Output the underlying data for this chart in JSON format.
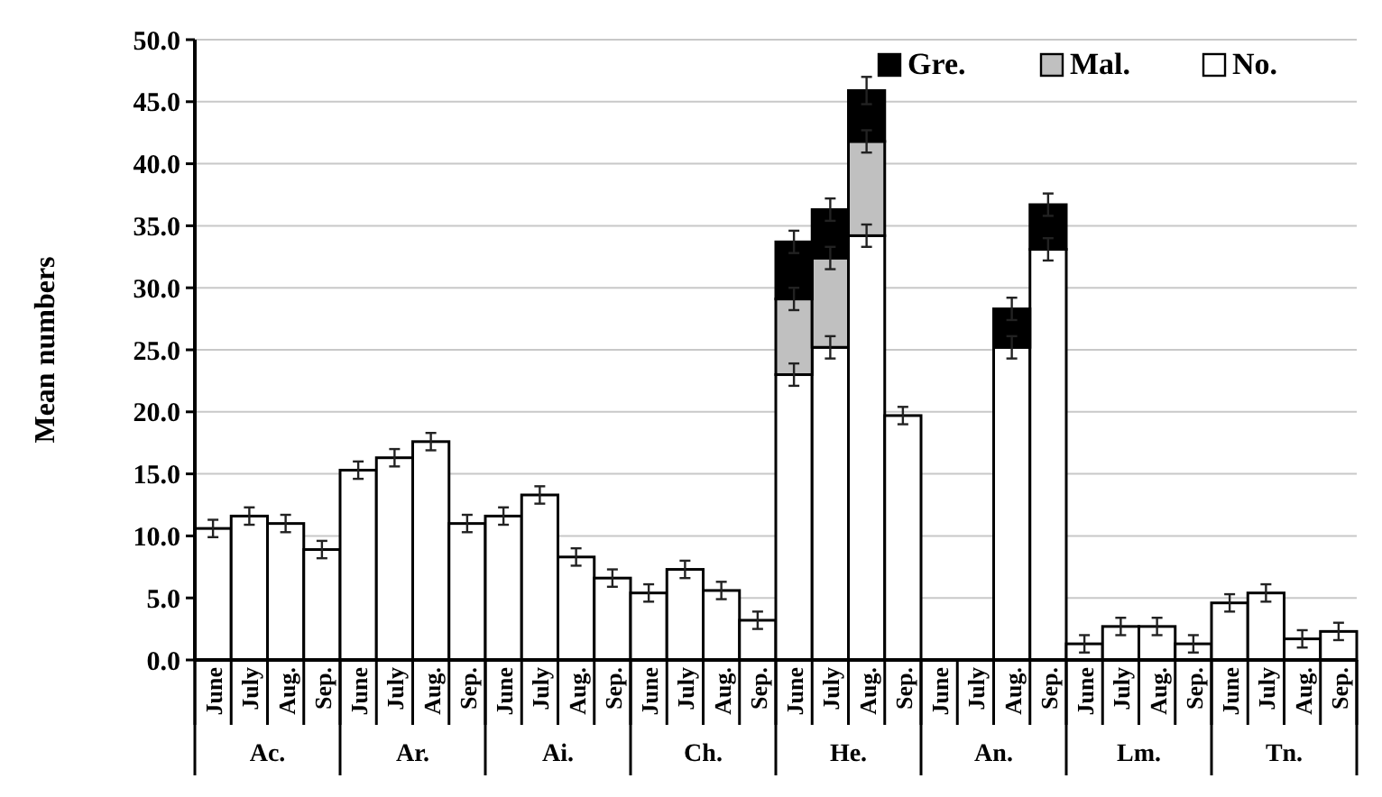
{
  "chart_data": {
    "type": "bar",
    "stacked": true,
    "ylabel": "Mean numbers",
    "categories": [
      "June",
      "July",
      "Aug.",
      "Sep.",
      "June",
      "July",
      "Aug.",
      "Sep.",
      "June",
      "July",
      "Aug.",
      "Sep.",
      "June",
      "July",
      "Aug.",
      "Sep.",
      "June",
      "July",
      "Aug.",
      "Sep.",
      "June",
      "July",
      "Aug.",
      "Sep.",
      "June",
      "July",
      "Aug.",
      "Sep.",
      "June",
      "July",
      "Aug.",
      "Sep."
    ],
    "series": [
      {
        "name": "No.",
        "color": "#ffffff",
        "values": [
          10.6,
          11.6,
          11.0,
          8.9,
          15.3,
          16.3,
          17.6,
          11.0,
          11.6,
          13.3,
          8.3,
          6.6,
          5.4,
          7.3,
          5.6,
          3.2,
          23.0,
          25.2,
          34.2,
          19.7,
          0,
          0,
          25.2,
          33.1,
          1.3,
          2.7,
          2.7,
          1.3,
          4.6,
          5.4,
          1.7,
          2.3
        ],
        "errors": [
          0.7,
          0.7,
          0.7,
          0.7,
          0.7,
          0.7,
          0.7,
          0.7,
          0.7,
          0.7,
          0.7,
          0.7,
          0.7,
          0.7,
          0.7,
          0.7,
          0.9,
          0.9,
          0.9,
          0.7,
          null,
          null,
          0.9,
          0.9,
          0.7,
          0.7,
          0.7,
          0.7,
          0.7,
          0.7,
          0.7,
          0.7
        ]
      },
      {
        "name": "Mal.",
        "color": "#c0c0c0",
        "values": [
          0,
          0,
          0,
          0,
          0,
          0,
          0,
          0,
          0,
          0,
          0,
          0,
          0,
          0,
          0,
          0,
          6.1,
          7.2,
          7.6,
          0,
          0,
          0,
          0,
          0,
          0,
          0,
          0,
          0,
          0,
          0,
          0,
          0
        ],
        "errors": [
          null,
          null,
          null,
          null,
          null,
          null,
          null,
          null,
          null,
          null,
          null,
          null,
          null,
          null,
          null,
          null,
          0.9,
          0.9,
          0.9,
          null,
          null,
          null,
          null,
          null,
          null,
          null,
          null,
          null,
          null,
          null,
          null,
          null
        ]
      },
      {
        "name": "Gre.",
        "color": "#000000",
        "values": [
          0,
          0,
          0,
          0,
          0,
          0,
          0,
          0,
          0,
          0,
          0,
          0,
          0,
          0,
          0,
          0,
          4.6,
          3.9,
          4.1,
          0,
          0,
          0,
          3.1,
          3.6,
          0,
          0,
          0,
          0,
          0,
          0,
          0,
          0
        ],
        "errors": [
          null,
          null,
          null,
          null,
          null,
          null,
          null,
          null,
          null,
          null,
          null,
          null,
          null,
          null,
          null,
          null,
          0.9,
          0.9,
          1.1,
          null,
          null,
          null,
          0.9,
          0.9,
          null,
          null,
          null,
          null,
          null,
          null,
          null,
          null
        ]
      }
    ],
    "ylim": [
      0,
      50
    ],
    "yticks": [
      {
        "value": 0,
        "label": "0.0"
      },
      {
        "value": 5,
        "label": "5.0"
      },
      {
        "value": 10,
        "label": "10.0"
      },
      {
        "value": 15,
        "label": "15.0"
      },
      {
        "value": 20,
        "label": "20.0"
      },
      {
        "value": 25,
        "label": "25.0"
      },
      {
        "value": 30,
        "label": "30.0"
      },
      {
        "value": 35,
        "label": "35.0"
      },
      {
        "value": 40,
        "label": "40.0"
      },
      {
        "value": 45,
        "label": "45.0"
      },
      {
        "value": 50,
        "label": "50.0"
      }
    ],
    "annotations": [
      "Ac.",
      "Ar.",
      "Ai.",
      "Ch.",
      "He.",
      "An.",
      "Lm.",
      "Tn."
    ],
    "grid": "y",
    "legend": "top right"
  }
}
